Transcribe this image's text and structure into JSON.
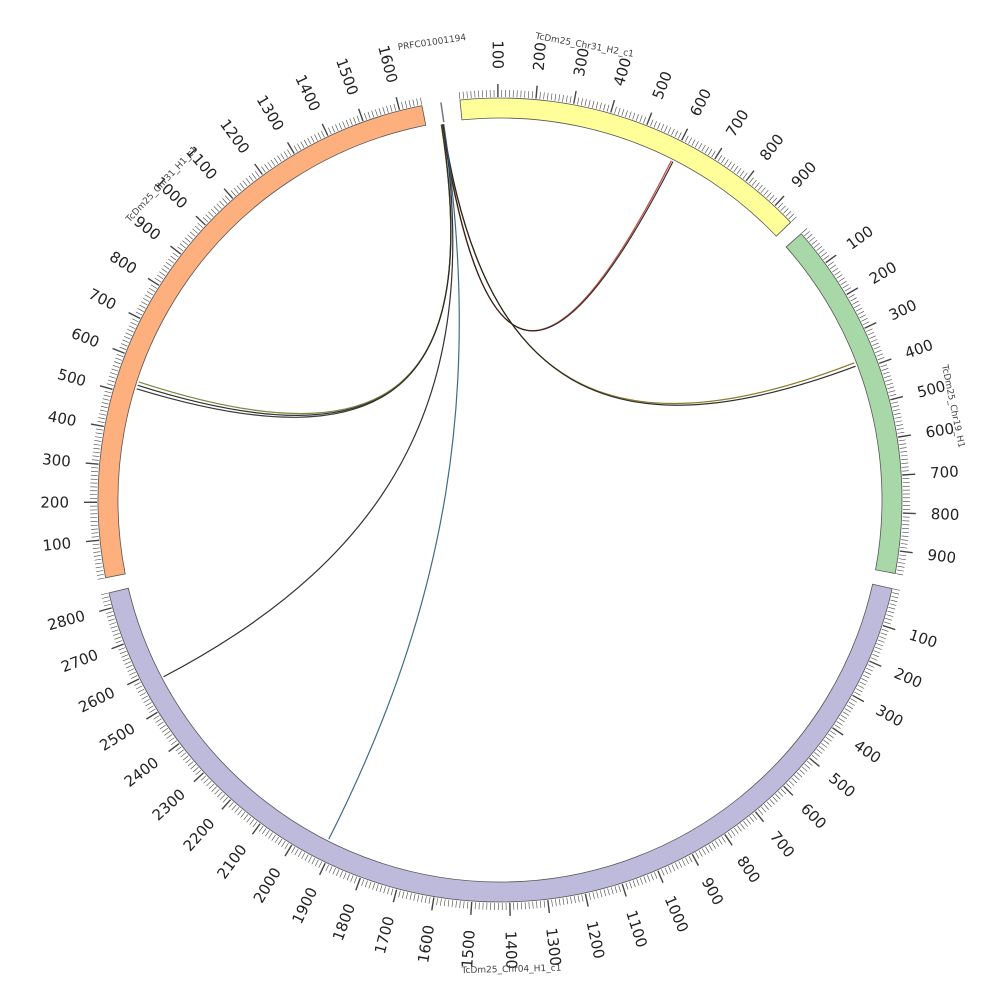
{
  "diagram": {
    "type": "circos",
    "segments": [
      {
        "id": "prfc",
        "name": "PRFC01001194",
        "color": "#ffffff",
        "length": 20,
        "ticks": []
      },
      {
        "id": "chr31h2",
        "name": "TcDm25_Chr31_H2_c1",
        "color": "#ffff99",
        "length": 960,
        "ticks": [
          "100",
          "200",
          "300",
          "400",
          "500",
          "600",
          "700",
          "800",
          "900"
        ]
      },
      {
        "id": "chr19h1",
        "name": "TcDm25_Chr19_H1",
        "color": "#a8d8a8",
        "length": 960,
        "ticks": [
          "100",
          "200",
          "300",
          "400",
          "500",
          "600",
          "700",
          "800",
          "900"
        ]
      },
      {
        "id": "chr04h1",
        "name": "TcDm25_Chr04_H1_c1",
        "color": "#bebadc",
        "length": 2840,
        "ticks": [
          "100",
          "200",
          "300",
          "400",
          "500",
          "600",
          "700",
          "800",
          "900",
          "1000",
          "1100",
          "1200",
          "1300",
          "1400",
          "1500",
          "1600",
          "1700",
          "1800",
          "1900",
          "2000",
          "2100",
          "2200",
          "2300",
          "2400",
          "2500",
          "2600",
          "2700",
          "2800"
        ]
      },
      {
        "id": "chr31h1",
        "name": "TcDm25_Chr31_H1_c1",
        "color": "#fdb07e",
        "length": 1660,
        "ticks": [
          "100",
          "200",
          "300",
          "400",
          "500",
          "600",
          "700",
          "800",
          "900",
          "1000",
          "1100",
          "1200",
          "1300",
          "1400",
          "1500",
          "1600"
        ]
      }
    ],
    "links": [
      {
        "from": "prfc",
        "from_pos": 2,
        "to": "chr31h1",
        "to_pos": 530,
        "color": "#1b1b1b"
      },
      {
        "from": "prfc",
        "from_pos": 2,
        "to": "chr31h1",
        "to_pos": 540,
        "color": "#6a7a2a"
      },
      {
        "from": "prfc",
        "from_pos": 3,
        "to": "chr31h1",
        "to_pos": 520,
        "color": "#222222"
      },
      {
        "from": "prfc",
        "from_pos": 4,
        "to": "chr31h2",
        "to_pos": 600,
        "color": "#c0392b"
      },
      {
        "from": "prfc",
        "from_pos": 5,
        "to": "chr31h2",
        "to_pos": 605,
        "color": "#1b1b1b"
      },
      {
        "from": "prfc",
        "from_pos": 6,
        "to": "chr19h1",
        "to_pos": 375,
        "color": "#7a6a10"
      },
      {
        "from": "prfc",
        "from_pos": 7,
        "to": "chr19h1",
        "to_pos": 385,
        "color": "#1b1b1b"
      },
      {
        "from": "prfc",
        "from_pos": 8,
        "to": "chr04h1",
        "to_pos": 2575,
        "color": "#1b1b1b"
      },
      {
        "from": "prfc",
        "from_pos": 9,
        "to": "chr04h1",
        "to_pos": 1920,
        "color": "#2a5a7a"
      }
    ]
  }
}
